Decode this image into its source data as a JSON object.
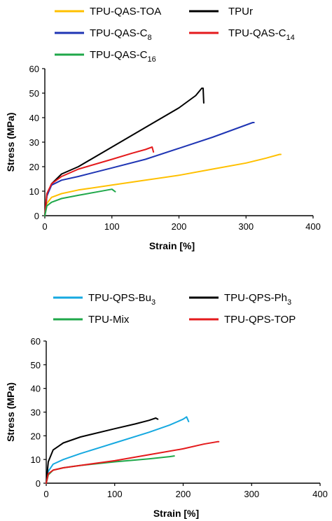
{
  "chart_data": [
    {
      "type": "line",
      "xlabel": "Strain [%]",
      "ylabel": "Stress (MPa)",
      "xlim": [
        0,
        400
      ],
      "ylim": [
        0,
        60
      ],
      "xticks": [
        "0",
        "100",
        "200",
        "300",
        "400"
      ],
      "yticks": [
        "0",
        "10",
        "20",
        "30",
        "40",
        "50",
        "60"
      ],
      "grid": false,
      "legend_position": "top",
      "series": [
        {
          "name": "TPU-QAS-TOA",
          "label_parts": [
            "TPU-QAS-TOA",
            ""
          ],
          "color": "#ffc000",
          "x": [
            0,
            3,
            10,
            25,
            50,
            100,
            150,
            200,
            250,
            300,
            330,
            350,
            352
          ],
          "y": [
            0,
            5,
            7.5,
            9,
            10.5,
            12.5,
            14.5,
            16.5,
            19,
            21.5,
            23.5,
            25,
            25
          ]
        },
        {
          "name": "TPUr",
          "label_parts": [
            "TPUr",
            ""
          ],
          "color": "#000000",
          "x": [
            0,
            3,
            10,
            25,
            50,
            100,
            150,
            200,
            225,
            234,
            236,
            237
          ],
          "y": [
            0,
            8,
            13,
            17,
            20,
            28,
            36,
            44,
            49,
            52,
            52,
            46
          ]
        },
        {
          "name": "TPU-QAS-C8",
          "label_parts": [
            "TPU-QAS-C",
            "8"
          ],
          "color": "#1f35b4",
          "x": [
            0,
            3,
            10,
            25,
            50,
            100,
            150,
            200,
            250,
            290,
            310,
            312
          ],
          "y": [
            0,
            8,
            12.5,
            14.5,
            16,
            19.5,
            23,
            27.5,
            32,
            36,
            38,
            38
          ]
        },
        {
          "name": "TPU-QAS-C14",
          "label_parts": [
            "TPU-QAS-C",
            "14"
          ],
          "color": "#e41a1c",
          "x": [
            0,
            3,
            10,
            25,
            50,
            100,
            130,
            150,
            160,
            162
          ],
          "y": [
            0,
            9,
            13,
            16,
            19,
            23,
            25.5,
            27,
            28,
            26
          ]
        },
        {
          "name": "TPU-QAS-C16",
          "label_parts": [
            "TPU-QAS-C",
            "16"
          ],
          "color": "#1fa84a",
          "x": [
            0,
            3,
            10,
            25,
            50,
            80,
            100,
            105
          ],
          "y": [
            0,
            4,
            5.5,
            7,
            8.3,
            9.8,
            10.8,
            9.8
          ]
        }
      ]
    },
    {
      "type": "line",
      "xlabel": "Strain [%]",
      "ylabel": "Stress (MPa)",
      "xlim": [
        0,
        400
      ],
      "ylim": [
        0,
        60
      ],
      "xticks": [
        "0",
        "100",
        "200",
        "300",
        "400"
      ],
      "yticks": [
        "0",
        "10",
        "20",
        "30",
        "40",
        "50",
        "60"
      ],
      "grid": false,
      "legend_position": "top",
      "series": [
        {
          "name": "TPU-QPS-Bu3",
          "label_parts": [
            "TPU-QPS-Bu",
            "3"
          ],
          "color": "#16a9e0",
          "x": [
            0,
            3,
            10,
            25,
            50,
            100,
            150,
            180,
            200,
            205,
            208
          ],
          "y": [
            0,
            5,
            8,
            10,
            12.5,
            17,
            21.5,
            24.5,
            27,
            28,
            26
          ]
        },
        {
          "name": "TPU-QPS-Ph3",
          "label_parts": [
            "TPU-QPS-Ph",
            "3"
          ],
          "color": "#000000",
          "x": [
            0,
            3,
            10,
            25,
            50,
            100,
            130,
            150,
            160,
            163
          ],
          "y": [
            0,
            9,
            14,
            17,
            19.5,
            23,
            25,
            26.5,
            27.5,
            27
          ]
        },
        {
          "name": "TPU-Mix",
          "label_parts": [
            "TPU-Mix",
            ""
          ],
          "color": "#1fa84a",
          "x": [
            0,
            3,
            10,
            25,
            50,
            100,
            150,
            180,
            187
          ],
          "y": [
            0,
            3.5,
            5.5,
            6.5,
            7.5,
            9,
            10.3,
            11.2,
            11.5
          ]
        },
        {
          "name": "TPU-QPS-TOP",
          "label_parts": [
            "TPU-QPS-TOP",
            ""
          ],
          "color": "#e41a1c",
          "x": [
            0,
            3,
            10,
            25,
            50,
            100,
            150,
            200,
            230,
            250,
            252
          ],
          "y": [
            0,
            4,
            5.5,
            6.5,
            7.5,
            9.5,
            12,
            14.5,
            16.5,
            17.5,
            17.5
          ]
        }
      ]
    }
  ]
}
